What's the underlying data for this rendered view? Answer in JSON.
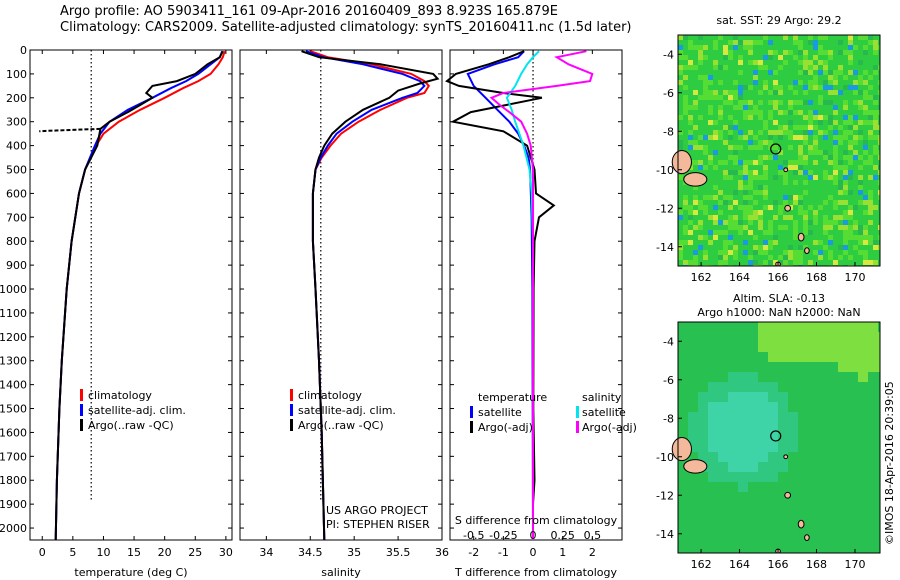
{
  "title_line1": "Argo profile: AO 5903411_161 09-Apr-2016 20160409_893 8.923S 165.879E",
  "title_line2": "Climatology: CARS2009. Satellite-adjusted climatology: synTS_20160411.nc (1.5d later)",
  "timestamp": "©IMOS 18-Apr-2016 20:39:05",
  "colors": {
    "climatology": "#ff0000",
    "satellite": "#0000ff",
    "argo": "#000000",
    "satellite_s": "#00e5ee",
    "argo_s": "#ff00ff",
    "coast": "#f4b89a"
  },
  "depth_ticks": [
    "0",
    "100",
    "200",
    "300",
    "400",
    "500",
    "600",
    "700",
    "800",
    "900",
    "1000",
    "1100",
    "1200",
    "1300",
    "1400",
    "1500",
    "1600",
    "1700",
    "1800",
    "1900",
    "2000"
  ],
  "chart_data": [
    {
      "type": "line",
      "xlabel": "temperature (deg C)",
      "ylim": [
        2050,
        0
      ],
      "xlim": [
        -2,
        31
      ],
      "x_ticks": [
        "0",
        "5",
        "10",
        "15",
        "20",
        "25",
        "30"
      ],
      "reference_x": 8,
      "legend": [
        "climatology",
        "satellite-adj. clim.",
        "Argo(..raw -QC)"
      ],
      "series": [
        {
          "name": "climatology",
          "depth": [
            5,
            30,
            60,
            100,
            130,
            160,
            200,
            250,
            300,
            350,
            400,
            500,
            600,
            800,
            1000,
            1300,
            1500,
            1800,
            2050
          ],
          "values": [
            29.8,
            29.5,
            28.8,
            27.5,
            25.5,
            23,
            20,
            16,
            12.5,
            10,
            8.8,
            7,
            6,
            4.8,
            4,
            3.2,
            2.8,
            2.4,
            2.2
          ]
        },
        {
          "name": "satellite-adj. clim.",
          "depth": [
            5,
            30,
            60,
            100,
            130,
            160,
            200,
            250,
            300,
            350,
            400,
            500,
            600,
            800,
            1000,
            1300,
            1500,
            1800,
            2050
          ],
          "values": [
            29.4,
            29,
            27.5,
            25.5,
            23.5,
            21,
            18,
            14,
            11,
            9.5,
            8.6,
            7,
            6,
            4.8,
            4,
            3.2,
            2.8,
            2.4,
            2.2
          ]
        },
        {
          "name": "Argo(..raw -QC)",
          "depth": [
            5,
            30,
            60,
            100,
            130,
            150,
            180,
            200,
            230,
            260,
            300,
            330,
            400,
            500,
            600,
            800,
            1000,
            1300,
            1500,
            1800,
            2050
          ],
          "values": [
            29.5,
            29,
            27,
            25,
            22,
            18,
            17,
            18,
            16,
            14,
            11,
            9.5,
            9,
            7,
            6,
            4.8,
            4,
            3.2,
            2.8,
            2.4,
            2.2
          ]
        },
        {
          "name": "Argo flagged",
          "depth": [
            330,
            332,
            335,
            338,
            340
          ],
          "values": [
            9.5,
            7,
            4,
            1,
            -0.5
          ]
        }
      ]
    },
    {
      "type": "line",
      "xlabel": "salinity",
      "ylim": [
        2050,
        0
      ],
      "xlim": [
        33.7,
        36.0
      ],
      "x_ticks": [
        "34",
        "34.5",
        "35",
        "35.5",
        "36"
      ],
      "reference_x": 34.62,
      "legend": [
        "climatology",
        "satellite-adj. clim.",
        "Argo(..raw -QC)"
      ],
      "annotation": [
        "US ARGO PROJECT",
        "PI: STEPHEN RISER"
      ],
      "series": [
        {
          "name": "climatology",
          "depth": [
            5,
            30,
            60,
            100,
            130,
            150,
            180,
            200,
            250,
            300,
            350,
            400,
            450,
            500,
            600,
            800,
            1000,
            1300,
            1600,
            2050
          ],
          "values": [
            34.5,
            34.7,
            35.2,
            35.65,
            35.8,
            35.85,
            35.8,
            35.6,
            35.3,
            35.05,
            34.85,
            34.73,
            34.63,
            34.56,
            34.53,
            34.53,
            34.56,
            34.6,
            34.63,
            34.66
          ]
        },
        {
          "name": "satellite-adj. clim.",
          "depth": [
            5,
            30,
            60,
            100,
            130,
            150,
            180,
            200,
            250,
            300,
            350,
            400,
            450,
            500,
            600,
            800,
            1000,
            1300,
            1600,
            2050
          ],
          "values": [
            34.45,
            34.65,
            35.1,
            35.55,
            35.75,
            35.8,
            35.72,
            35.55,
            35.2,
            34.98,
            34.8,
            34.7,
            34.62,
            34.56,
            34.53,
            34.53,
            34.56,
            34.6,
            34.63,
            34.66
          ]
        },
        {
          "name": "Argo(..raw -QC)",
          "depth": [
            5,
            30,
            60,
            100,
            120,
            140,
            170,
            200,
            250,
            300,
            350,
            400,
            450,
            500,
            600,
            800,
            1000,
            1300,
            1600,
            2050
          ],
          "values": [
            34.4,
            34.6,
            35.3,
            35.9,
            35.95,
            35.75,
            35.5,
            35.4,
            35.1,
            34.9,
            34.75,
            34.66,
            34.6,
            34.56,
            34.53,
            34.53,
            34.56,
            34.6,
            34.63,
            34.66
          ]
        }
      ]
    },
    {
      "type": "line",
      "xlabel": "T difference from climatology",
      "xlabel_top": "S difference from climatology",
      "ylim": [
        2050,
        0
      ],
      "xlim": [
        -2.8,
        3.0
      ],
      "x_ticks": [
        "-2",
        "-1",
        "0",
        "1",
        "2"
      ],
      "x_ticks_top": [
        "-0.5",
        "-0.25",
        "0",
        "0.25",
        "0.5"
      ],
      "reference_x": 0,
      "legend_t": [
        "temperature",
        "satellite",
        "Argo(-adj)"
      ],
      "legend_s": [
        "salinity",
        "satellite",
        "Argo(-adj)"
      ],
      "series": [
        {
          "name": "temperature satellite",
          "depth": [
            5,
            30,
            60,
            100,
            150,
            200,
            250,
            300,
            350,
            400,
            450,
            500,
            700,
            1000,
            2050
          ],
          "values": [
            -0.3,
            -0.5,
            -1.3,
            -2.2,
            -2.0,
            -1.6,
            -1.2,
            -0.8,
            -0.5,
            -0.3,
            -0.15,
            -0.1,
            -0.05,
            -0.02,
            0
          ]
        },
        {
          "name": "temperature Argo(-adj)",
          "depth": [
            5,
            30,
            60,
            100,
            130,
            150,
            180,
            200,
            230,
            260,
            300,
            340,
            400,
            500,
            600,
            650,
            700,
            800,
            1000,
            1500,
            1800,
            1900,
            2050
          ],
          "values": [
            -0.3,
            -0.8,
            -1.5,
            -2.6,
            -2.9,
            -2.5,
            -1.0,
            0.3,
            -0.9,
            -2.1,
            -2.7,
            -1.0,
            -0.2,
            0.05,
            0.1,
            0.7,
            0.2,
            0.05,
            0.02,
            0.01,
            0.05,
            0,
            0
          ]
        },
        {
          "name": "salinity satellite",
          "depth": [
            5,
            30,
            60,
            100,
            150,
            200,
            250,
            300,
            400,
            500,
            600,
            800,
            1000,
            1500,
            2050
          ],
          "values": [
            0.05,
            0.0,
            -0.05,
            -0.1,
            -0.15,
            -0.22,
            -0.18,
            -0.15,
            -0.08,
            -0.03,
            -0.01,
            0.0,
            0.0,
            0.0,
            0.0
          ]
        },
        {
          "name": "salinity Argo(-adj)",
          "depth": [
            5,
            30,
            60,
            100,
            130,
            150,
            180,
            200,
            230,
            260,
            300,
            350,
            400,
            500,
            600,
            800,
            1000,
            1500,
            2050
          ],
          "values": [
            0.45,
            0.2,
            0.3,
            0.5,
            0.48,
            0.2,
            -0.25,
            -0.35,
            -0.28,
            -0.2,
            -0.1,
            -0.05,
            -0.02,
            0.0,
            0.0,
            0.0,
            0.0,
            0.0,
            0.0
          ]
        }
      ]
    }
  ],
  "maps": [
    {
      "title": "sat. SST: 29 Argo: 29.2",
      "subtitle": "",
      "field": "sst",
      "x_ticks": [
        "162",
        "164",
        "166",
        "168",
        "170"
      ],
      "y_ticks": [
        "-4",
        "-6",
        "-8",
        "-10",
        "-12",
        "-14"
      ],
      "lon_range": [
        160.8,
        171.3
      ],
      "lat_range": [
        -15,
        -3
      ],
      "marker": [
        165.88,
        -8.92
      ]
    },
    {
      "title": "Altim. SLA: -0.13",
      "subtitle": "Argo h1000: NaN h2000: NaN",
      "field": "sla",
      "x_ticks": [
        "162",
        "164",
        "166",
        "168",
        "170"
      ],
      "y_ticks": [
        "-4",
        "-6",
        "-8",
        "-10",
        "-12",
        "-14"
      ],
      "lon_range": [
        160.8,
        171.3
      ],
      "lat_range": [
        -15,
        -3
      ],
      "marker": [
        165.88,
        -8.92
      ]
    }
  ]
}
